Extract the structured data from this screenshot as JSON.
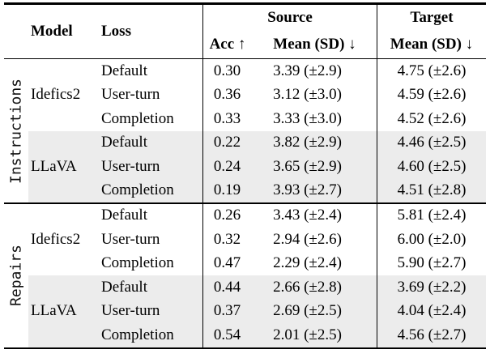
{
  "table": {
    "header": {
      "model": "Model",
      "loss": "Loss",
      "source": "Source",
      "acc": "Acc ↑",
      "source_mean": "Mean (SD) ↓",
      "target": "Target",
      "target_mean": "Mean (SD) ↓"
    },
    "groups": [
      {
        "label": "Instructions",
        "models": [
          {
            "name": "Idefics2",
            "rows": [
              {
                "loss": "Default",
                "acc": "0.30",
                "source_mean": "3.39 (±2.9)",
                "target_mean": "4.75 (±2.6)"
              },
              {
                "loss": "User-turn",
                "acc": "0.36",
                "source_mean": "3.12 (±3.0)",
                "target_mean": "4.59 (±2.6)"
              },
              {
                "loss": "Completion",
                "acc": "0.33",
                "source_mean": "3.33 (±3.0)",
                "target_mean": "4.52 (±2.6)"
              }
            ]
          },
          {
            "name": "LLaVA",
            "rows": [
              {
                "loss": "Default",
                "acc": "0.22",
                "source_mean": "3.82 (±2.9)",
                "target_mean": "4.46 (±2.5)"
              },
              {
                "loss": "User-turn",
                "acc": "0.24",
                "source_mean": "3.65 (±2.9)",
                "target_mean": "4.60 (±2.5)"
              },
              {
                "loss": "Completion",
                "acc": "0.19",
                "source_mean": "3.93 (±2.7)",
                "target_mean": "4.51 (±2.8)"
              }
            ]
          }
        ]
      },
      {
        "label": "Repairs",
        "models": [
          {
            "name": "Idefics2",
            "rows": [
              {
                "loss": "Default",
                "acc": "0.26",
                "source_mean": "3.43 (±2.4)",
                "target_mean": "5.81 (±2.4)"
              },
              {
                "loss": "User-turn",
                "acc": "0.32",
                "source_mean": "2.94 (±2.6)",
                "target_mean": "6.00 (±2.0)"
              },
              {
                "loss": "Completion",
                "acc": "0.47",
                "source_mean": "2.29 (±2.4)",
                "target_mean": "5.90 (±2.7)"
              }
            ]
          },
          {
            "name": "LLaVA",
            "rows": [
              {
                "loss": "Default",
                "acc": "0.44",
                "source_mean": "2.66 (±2.8)",
                "target_mean": "3.69 (±2.2)"
              },
              {
                "loss": "User-turn",
                "acc": "0.37",
                "source_mean": "2.69 (±2.5)",
                "target_mean": "4.04 (±2.4)"
              },
              {
                "loss": "Completion",
                "acc": "0.54",
                "source_mean": "2.01 (±2.5)",
                "target_mean": "4.56 (±2.7)"
              }
            ]
          }
        ]
      }
    ],
    "colors": {
      "shaded_row_bg": "#ececec",
      "rule_color": "#000000",
      "text_color": "#000000"
    }
  }
}
